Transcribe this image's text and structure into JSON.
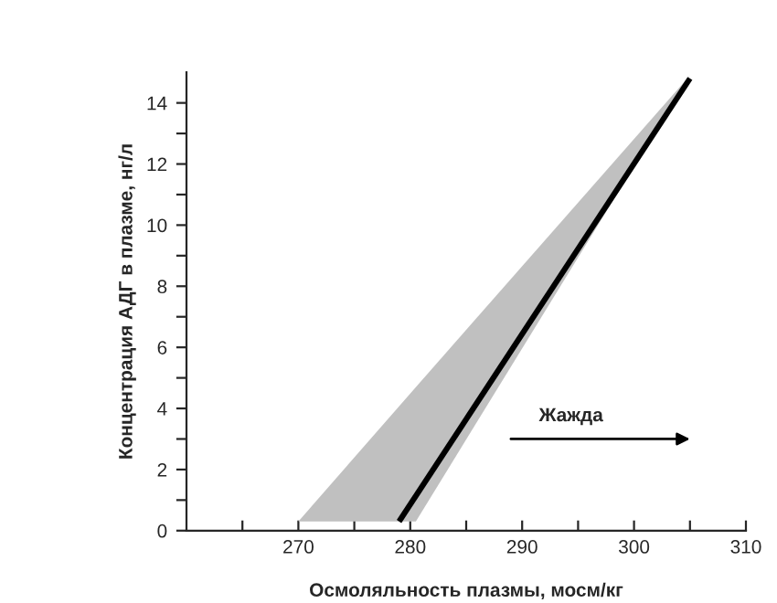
{
  "chart_data": {
    "type": "line",
    "xlabel": "Осмоляльность плазмы, мосм/кг",
    "ylabel": "Концентрация АДГ в плазме, нг/л",
    "xlim": [
      260,
      310
    ],
    "xticks": [
      {
        "value": 265,
        "label": null
      },
      270,
      {
        "value": 275,
        "label": null
      },
      280,
      {
        "value": 285,
        "label": null
      },
      290,
      {
        "value": 295,
        "label": null
      },
      300,
      {
        "value": 305,
        "label": null
      },
      310
    ],
    "ylim": [
      0,
      15
    ],
    "yticks": [
      0,
      {
        "value": 1,
        "label": null
      },
      2,
      {
        "value": 3,
        "label": null
      },
      4,
      {
        "value": 5,
        "label": null
      },
      6,
      {
        "value": 7,
        "label": null
      },
      8,
      {
        "value": 9,
        "label": null
      },
      10,
      {
        "value": 11,
        "label": null
      },
      12,
      {
        "value": 13,
        "label": null
      },
      14
    ],
    "series": [
      {
        "type": "area",
        "color": "#c0c0c0",
        "x": [
          270,
          280.5,
          305
        ],
        "values": [
          null,
          null,
          null
        ],
        "lower": [
          0.3,
          0.3,
          14.9
        ],
        "upper": [
          0.3,
          4.7,
          14.9
        ]
      },
      {
        "color": "#000000",
        "x": [
          279,
          305
        ],
        "values": [
          0.3,
          14.8
        ]
      }
    ],
    "annotations": [
      "Жажда"
    ],
    "grid": false,
    "legend": false,
    "marker": "none",
    "line_style": "solid"
  }
}
